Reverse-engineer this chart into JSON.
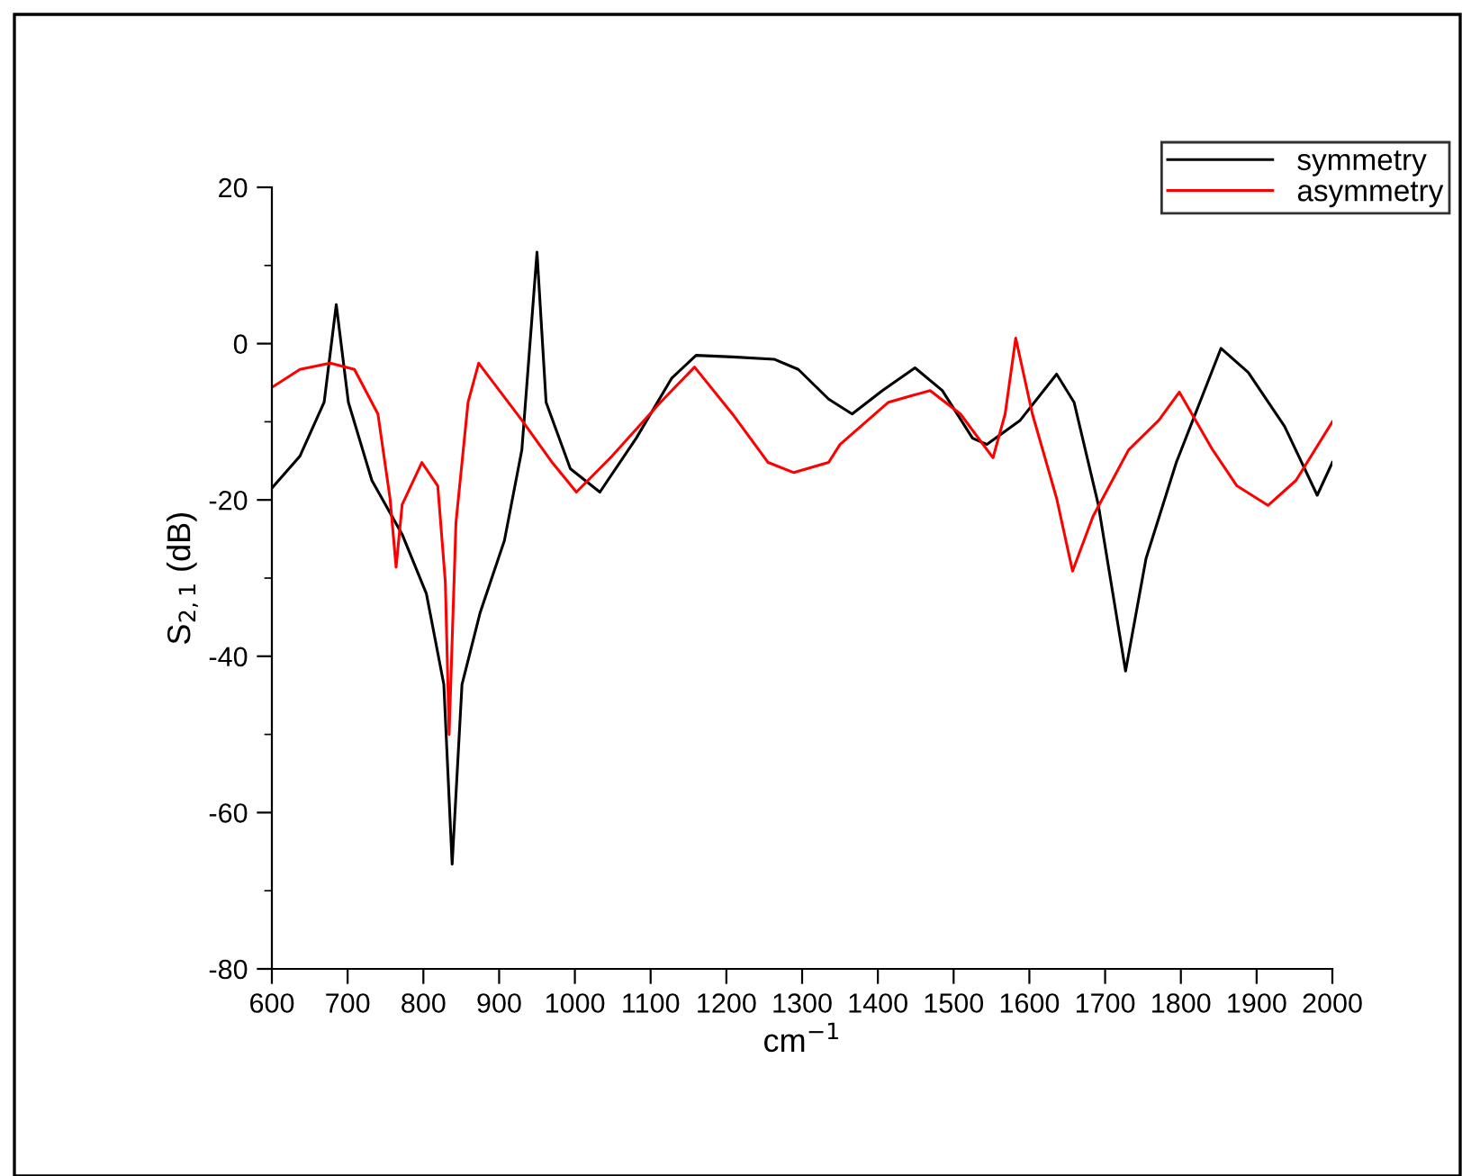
{
  "chart_data": {
    "type": "line",
    "xlabel": "cm$^{−1}$",
    "ylabel": "S$_{2,1}$ (dB)",
    "xlim": [
      600,
      2000
    ],
    "ylim": [
      -80,
      20
    ],
    "xticks": [
      600,
      700,
      800,
      900,
      1000,
      1100,
      1200,
      1300,
      1400,
      1500,
      1600,
      1700,
      1800,
      1900,
      2000
    ],
    "yticks": [
      -80,
      -60,
      -40,
      -20,
      0,
      20
    ],
    "legend": "top right",
    "grid": false,
    "series": [
      {
        "name": "symmetry",
        "color": "#000000",
        "x": [
          600,
          637,
          669,
          685,
          701,
          732,
          772,
          804,
          827,
          838,
          851,
          875,
          907,
          930,
          950,
          962,
          994,
          1033,
          1081,
          1128,
          1160,
          1208,
          1263,
          1295,
          1335,
          1366,
          1406,
          1449,
          1485,
          1525,
          1544,
          1588,
          1636,
          1659,
          1691,
          1727,
          1754,
          1794,
          1853,
          1889,
          1937,
          1980,
          2000
        ],
        "values": [
          -18.5,
          -14.4,
          -7.5,
          5,
          -7.5,
          -17.5,
          -24.4,
          -32,
          -43.6,
          -66.6,
          -43.6,
          -34.4,
          -25.2,
          -13.6,
          11.7,
          -7.5,
          -16,
          -19,
          -12.1,
          -4.4,
          -1.5,
          -1.7,
          -2,
          -3.3,
          -7.1,
          -9,
          -6,
          -3.1,
          -6,
          -12.1,
          -12.9,
          -9.8,
          -3.9,
          -7.5,
          -20.6,
          -41.9,
          -27.5,
          -15.2,
          -0.6,
          -3.7,
          -10.6,
          -19.4,
          -15.2
        ]
      },
      {
        "name": "asymmetry",
        "color": "#ff0000",
        "x": [
          600,
          637,
          677,
          709,
          740,
          756,
          764,
          772,
          798,
          819,
          829,
          834,
          843,
          859,
          873,
          930,
          970,
          1002,
          1049,
          1113,
          1158,
          1208,
          1255,
          1289,
          1335,
          1350,
          1414,
          1469,
          1509,
          1552,
          1568,
          1582,
          1604,
          1636,
          1657,
          1684,
          1731,
          1771,
          1798,
          1842,
          1874,
          1915,
          1952,
          2000
        ],
        "values": [
          -5.6,
          -3.3,
          -2.5,
          -3.3,
          -9,
          -19.8,
          -28.6,
          -20.6,
          -15.2,
          -18.2,
          -30.5,
          -50,
          -22.9,
          -7.5,
          -2.5,
          -9.8,
          -15.2,
          -19,
          -14.4,
          -7.5,
          -3,
          -9,
          -15.2,
          -16.5,
          -15.2,
          -12.9,
          -7.5,
          -6,
          -9,
          -14.6,
          -9,
          0.7,
          -9,
          -19.8,
          -29.1,
          -22.1,
          -13.6,
          -9.8,
          -6.2,
          -13.6,
          -18.2,
          -20.7,
          -17.5,
          -10
        ]
      }
    ]
  }
}
